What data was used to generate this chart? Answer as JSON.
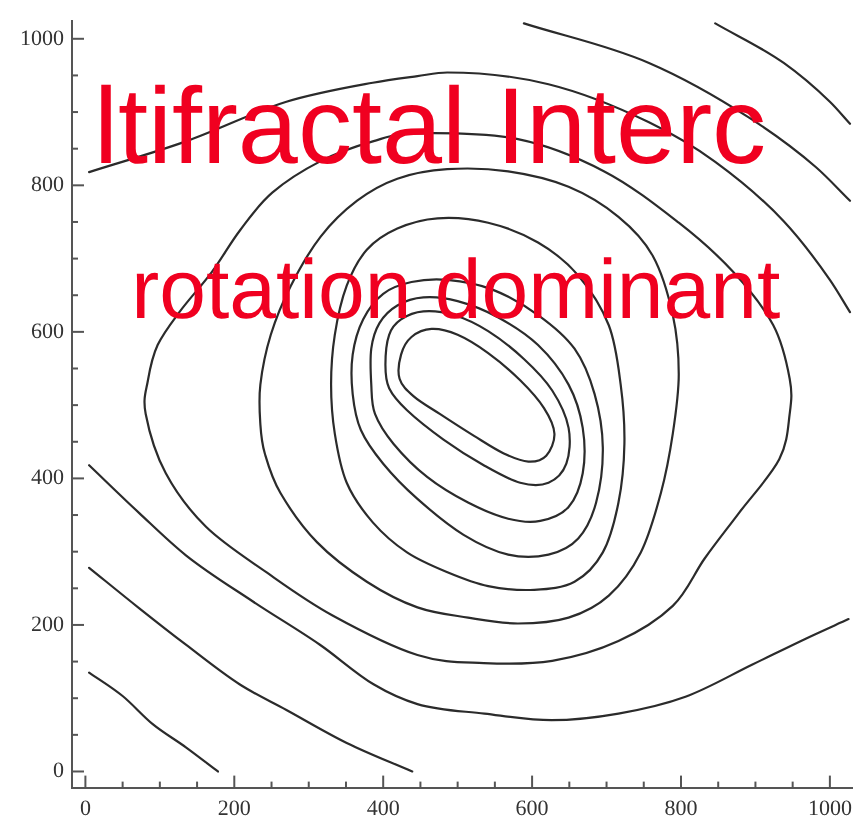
{
  "chart_data": {
    "type": "line",
    "title": "ltifractal Interc",
    "subtitle": "rotation dominant",
    "xlim": [
      -18,
      1030
    ],
    "ylim": [
      -22,
      1024
    ],
    "xticks": [
      0,
      {
        "value": 50,
        "label": null
      },
      {
        "value": 100,
        "label": null
      },
      {
        "value": 150,
        "label": null
      },
      200,
      {
        "value": 250,
        "label": null
      },
      {
        "value": 300,
        "label": null
      },
      {
        "value": 350,
        "label": null
      },
      400,
      {
        "value": 450,
        "label": null
      },
      {
        "value": 500,
        "label": null
      },
      {
        "value": 550,
        "label": null
      },
      600,
      {
        "value": 650,
        "label": null
      },
      {
        "value": 700,
        "label": null
      },
      {
        "value": 750,
        "label": null
      },
      800,
      {
        "value": 850,
        "label": null
      },
      {
        "value": 900,
        "label": null
      },
      {
        "value": 950,
        "label": null
      },
      1000
    ],
    "yticks": [
      0,
      {
        "value": 50,
        "label": null
      },
      {
        "value": 100,
        "label": null
      },
      {
        "value": 150,
        "label": null
      },
      200,
      {
        "value": 250,
        "label": null
      },
      {
        "value": 300,
        "label": null
      },
      {
        "value": 350,
        "label": null
      },
      400,
      {
        "value": 450,
        "label": null
      },
      {
        "value": 500,
        "label": null
      },
      {
        "value": 550,
        "label": null
      },
      600,
      {
        "value": 650,
        "label": null
      },
      {
        "value": 700,
        "label": null
      },
      {
        "value": 750,
        "label": null
      },
      800,
      {
        "value": 850,
        "label": null
      },
      {
        "value": 900,
        "label": null
      },
      {
        "value": 950,
        "label": null
      },
      1000
    ],
    "grid": false,
    "marker": "none",
    "line_style": "solid",
    "series": [
      {
        "color": "#2b2b2b",
        "x": [
          5,
          50,
          90,
          135,
          178
        ],
        "values": [
          135,
          103,
          65,
          33,
          0
        ]
      },
      {
        "color": "#2b2b2b",
        "x": [
          5,
          72,
          135,
          207,
          270,
          351,
          439
        ],
        "values": [
          278,
          223,
          173,
          119,
          84,
          39,
          0
        ]
      },
      {
        "color": "#2b2b2b",
        "x": [
          5,
          72,
          135,
          225,
          315,
          387,
          446,
          536,
          626,
          716,
          806,
          896,
          969,
          1025
        ],
        "values": [
          418,
          353,
          295,
          232,
          173,
          119,
          92,
          79,
          70,
          79,
          102,
          146,
          182,
          208
        ]
      },
      {
        "color": "#2b2b2b",
        "x": [
          5,
          135,
          270,
          386,
          446,
          486,
          622,
          757,
          846,
          938,
          1000,
          1027
        ],
        "values": [
          818,
          860,
          914,
          940,
          949,
          954,
          938,
          886,
          832,
          751,
          671,
          627
        ]
      },
      {
        "color": "#2b2b2b",
        "x": [
          589,
          757,
          892,
          981,
          1027
        ],
        "values": [
          1021,
          967,
          892,
          825,
          779
        ]
      },
      {
        "color": "#2b2b2b",
        "x": [
          846,
          938,
          1000,
          1027
        ],
        "values": [
          1021,
          967,
          914,
          884
        ]
      }
    ]
  }
}
